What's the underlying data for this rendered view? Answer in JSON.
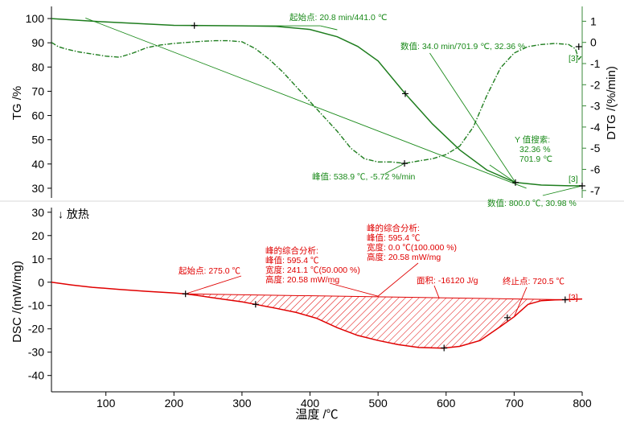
{
  "chart_data": [
    {
      "type": "line",
      "panel": "TG/DTG",
      "xlim": [
        20,
        800
      ],
      "ylim_left": [
        26,
        105
      ],
      "ylim_right": [
        -7.35,
        1.7
      ],
      "ylabel": "TG /%",
      "ylabel_right": "DTG /(%/min)",
      "yticks_left": [
        "100",
        "90",
        "80",
        "70",
        "60",
        "50",
        "40",
        "30"
      ],
      "yticks_right": [
        "1",
        "0",
        "-1",
        "-2",
        "-3",
        "-4",
        "-5",
        "-6",
        "-7"
      ],
      "colors": {
        "curve": "#1e7d1e",
        "annotation": "#1a8a1a",
        "axis": "#3a8a3a"
      },
      "series": [
        {
          "name": "TG",
          "axis": "left",
          "style": "solid",
          "x": [
            20,
            100,
            200,
            300,
            350,
            400,
            440,
            470,
            500,
            540,
            580,
            620,
            660,
            701.9,
            740,
            780,
            800
          ],
          "y": [
            100,
            98.6,
            97.2,
            97.0,
            96.8,
            95.5,
            92.5,
            88.5,
            82.5,
            69.0,
            56.5,
            45.8,
            37.5,
            32.36,
            31.3,
            31.0,
            30.98
          ]
        },
        {
          "name": "DTG",
          "axis": "right",
          "style": "dashdot",
          "x": [
            20,
            30,
            40,
            60,
            80,
            100,
            120,
            140,
            160,
            180,
            200,
            220,
            240,
            260,
            280,
            300,
            320,
            340,
            360,
            380,
            400,
            420,
            440,
            460,
            480,
            500,
            520,
            538.9,
            560,
            580,
            600,
            620,
            640,
            660,
            680,
            700,
            720,
            740,
            760,
            780,
            790,
            795,
            800
          ],
          "y": [
            0.0,
            -0.2,
            -0.3,
            -0.45,
            -0.55,
            -0.65,
            -0.7,
            -0.5,
            -0.25,
            -0.12,
            -0.05,
            0.0,
            0.05,
            0.08,
            0.08,
            0.03,
            -0.3,
            -0.8,
            -1.4,
            -2.1,
            -2.8,
            -3.5,
            -4.2,
            -5.0,
            -5.5,
            -5.65,
            -5.65,
            -5.72,
            -5.6,
            -5.5,
            -5.3,
            -4.9,
            -4.0,
            -2.5,
            -1.2,
            -0.5,
            -0.2,
            -0.1,
            -0.05,
            -0.1,
            -0.3,
            -0.8,
            -0.6
          ]
        }
      ],
      "markers": [
        {
          "x": 230,
          "y": 97.1,
          "axis": "left"
        },
        {
          "x": 540,
          "y": 69.0,
          "axis": "left"
        },
        {
          "x": 701.9,
          "y": 32.36,
          "axis": "left"
        },
        {
          "x": 800,
          "y": 30.98,
          "axis": "left"
        },
        {
          "x": 538.9,
          "y": -5.72,
          "axis": "right"
        },
        {
          "x": 795,
          "y": -0.2,
          "axis": "right"
        }
      ],
      "annotations": {
        "onset": "起始点: 20.8 min/441.0 ℃",
        "value1": "数值: 34.0 min/701.9 ℃, 32.36 %",
        "ysearch_title": "Y 值搜索:",
        "ysearch_val": "32.36 %",
        "ysearch_temp": "701.9 ℃",
        "peak": "峰值: 538.9 ℃, -5.72 %/min",
        "value2": "数值: 800.0 ℃, 30.98 %",
        "tag_dtg": "[3]",
        "tag_tg": "[3]"
      }
    },
    {
      "type": "area",
      "panel": "DSC",
      "xlim": [
        20,
        800
      ],
      "ylim": [
        -47,
        32
      ],
      "xlabel": "温度 /℃",
      "ylabel": "DSC /(mW/mg)",
      "yticks": [
        "30",
        "20",
        "10",
        "0",
        "-10",
        "-20",
        "-30",
        "-40"
      ],
      "xticks": [
        "100",
        "200",
        "300",
        "400",
        "500",
        "600",
        "700",
        "800"
      ],
      "exo_label": "↓ 放热",
      "colors": {
        "curve": "#e00000",
        "annotation": "#e00000",
        "axis": "#000000"
      },
      "series": [
        {
          "name": "DSC",
          "x": [
            20,
            50,
            80,
            120,
            160,
            200,
            217,
            240,
            270,
            300,
            320,
            350,
            380,
            410,
            440,
            470,
            500,
            530,
            560,
            595.4,
            620,
            650,
            680,
            700,
            720.5,
            740,
            760,
            775,
            790,
            800
          ],
          "y": [
            0.0,
            -1.2,
            -2.2,
            -3.1,
            -3.9,
            -4.6,
            -5.0,
            -5.9,
            -7.2,
            -8.4,
            -9.5,
            -11.2,
            -13.0,
            -15.5,
            -19.5,
            -22.8,
            -25.0,
            -26.8,
            -28.0,
            -28.3,
            -27.5,
            -25.0,
            -19.0,
            -14.8,
            -9.5,
            -7.9,
            -7.6,
            -7.5,
            -7.3,
            -7.2
          ]
        }
      ],
      "baseline": {
        "x": [
          217,
          775
        ],
        "y": [
          -5.0,
          -7.5
        ]
      },
      "markers": [
        {
          "x": 217,
          "y": -5.0
        },
        {
          "x": 320,
          "y": -9.5
        },
        {
          "x": 597,
          "y": -28.2
        },
        {
          "x": 690,
          "y": -15.2
        },
        {
          "x": 775,
          "y": -7.5
        }
      ],
      "annotations": {
        "onset": "起始点: 275.0 ℃",
        "peak1_title": "峰的综合分析:",
        "peak1_peak": "峰值: 595.4 ℃",
        "peak1_width": "宽度: 241.1 ℃(50.000 %)",
        "peak1_height": "高度: 20.58 mW/mg",
        "peak2_title": "峰的综合分析:",
        "peak2_peak": "峰值: 595.4 ℃",
        "peak2_width": "宽度: 0.0 ℃(100.000 %)",
        "peak2_height": "高度: 20.58 mW/mg",
        "area": "面积: -16120 J/g",
        "endset": "终止点: 720.5 ℃",
        "tag": "[3]"
      }
    }
  ]
}
